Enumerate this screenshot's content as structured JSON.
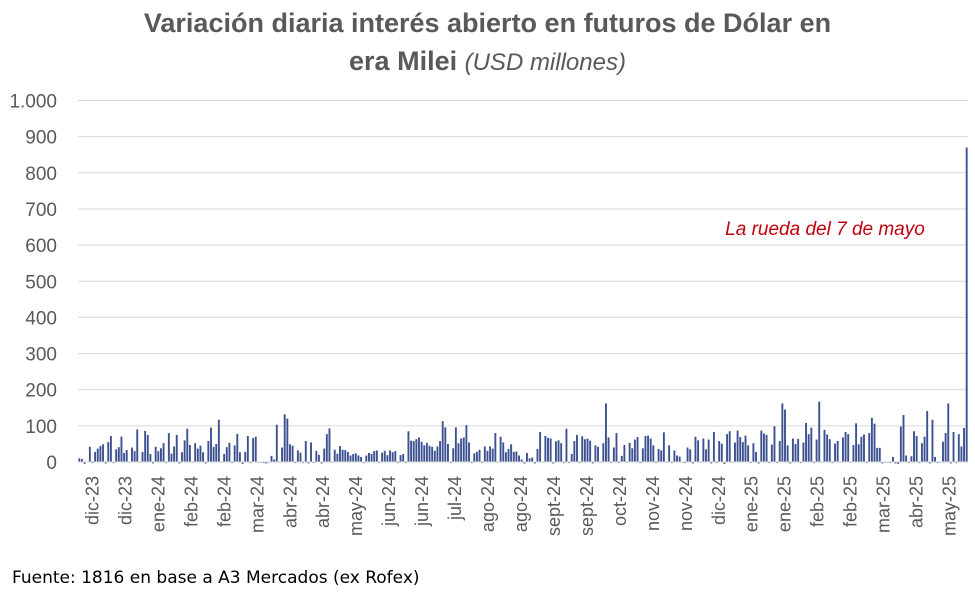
{
  "chart_data": {
    "type": "bar",
    "title_line1": "Variación diaria interés abierto en futuros de Dólar en",
    "title_line2": "era Milei",
    "title_units": "(USD millones)",
    "ylim": [
      -10,
      1000
    ],
    "y_ticks": [
      0,
      100,
      200,
      300,
      400,
      500,
      600,
      700,
      800,
      900,
      1000
    ],
    "y_tick_labels": [
      "0",
      "100",
      "200",
      "300",
      "400",
      "500",
      "600",
      "700",
      "800",
      "900",
      "1.000"
    ],
    "x_tick_labels": [
      "dic-23",
      "dic-23",
      "ene-24",
      "feb-24",
      "feb-24",
      "mar-24",
      "abr-24",
      "abr-24",
      "may-24",
      "jun-24",
      "jun-24",
      "jul-24",
      "ago-24",
      "ago-24",
      "sept-24",
      "sept-24",
      "oct-24",
      "nov-24",
      "nov-24",
      "dic-24",
      "ene-25",
      "ene-25",
      "feb-25",
      "feb-25",
      "mar-25",
      "abr-25",
      "may-25"
    ],
    "grid": true,
    "bar_color": "#3d5191",
    "annotation": {
      "text": "La rueda del 7 de mayo",
      "color": "#c0000b"
    },
    "values": [
      10,
      8,
      -5,
      0,
      42,
      -3,
      28,
      37,
      44,
      49,
      -4,
      55,
      72,
      -3,
      35,
      41,
      70,
      25,
      33,
      -2,
      40,
      30,
      90,
      -2,
      28,
      86,
      75,
      22,
      -4,
      42,
      30,
      38,
      52,
      -3,
      80,
      23,
      43,
      75,
      -4,
      27,
      60,
      92,
      47,
      -2,
      52,
      37,
      45,
      27,
      -4,
      58,
      95,
      42,
      50,
      117,
      -2,
      22,
      41,
      53,
      -3,
      46,
      78,
      27,
      -5,
      28,
      72,
      -3,
      66,
      70,
      -2,
      -2,
      -3,
      -4,
      -2,
      17,
      7,
      103,
      -2,
      40,
      132,
      120,
      49,
      45,
      -3,
      32,
      26,
      -3,
      58,
      -4,
      54,
      -3,
      31,
      20,
      -4,
      37,
      77,
      93,
      -2,
      34,
      23,
      44,
      34,
      33,
      28,
      18,
      22,
      24,
      18,
      14,
      -3,
      18,
      25,
      22,
      30,
      32,
      -3,
      26,
      31,
      19,
      32,
      27,
      30,
      -3,
      19,
      22,
      -3,
      85,
      59,
      58,
      63,
      68,
      56,
      46,
      53,
      45,
      42,
      31,
      43,
      58,
      113,
      96,
      50,
      -3,
      38,
      96,
      52,
      65,
      68,
      102,
      54,
      -3,
      24,
      28,
      34,
      -3,
      43,
      31,
      43,
      37,
      80,
      -2,
      70,
      54,
      27,
      36,
      49,
      28,
      29,
      18,
      7,
      -4,
      25,
      10,
      12,
      -4,
      36,
      83,
      -2,
      72,
      67,
      65,
      -4,
      57,
      60,
      52,
      -3,
      92,
      -3,
      22,
      58,
      75,
      -3,
      71,
      63,
      65,
      59,
      -4,
      46,
      42,
      -2,
      52,
      162,
      68,
      -3,
      40,
      80,
      -3,
      17,
      47,
      -2,
      53,
      38,
      62,
      69,
      -3,
      38,
      72,
      73,
      65,
      46,
      -3,
      36,
      32,
      82,
      -2,
      46,
      -3,
      32,
      18,
      15,
      -2,
      -3,
      40,
      35,
      -4,
      70,
      60,
      -2,
      65,
      35,
      62,
      -4,
      83,
      -3,
      58,
      51,
      -5,
      77,
      85,
      -2,
      54,
      87,
      69,
      55,
      73,
      46,
      -3,
      52,
      28,
      -4,
      87,
      79,
      75,
      -3,
      48,
      99,
      -3,
      58,
      162,
      145,
      46,
      -4,
      65,
      50,
      64,
      -3,
      54,
      108,
      77,
      95,
      -3,
      62,
      167,
      -2,
      89,
      76,
      63,
      -3,
      51,
      58,
      -2,
      68,
      83,
      77,
      -2,
      47,
      107,
      49,
      70,
      76,
      -3,
      80,
      122,
      106,
      39,
      39,
      -4,
      -2,
      -2,
      -3,
      14,
      -4,
      -5,
      98,
      130,
      18,
      -3,
      16,
      85,
      72,
      -3,
      52,
      70,
      141,
      -4,
      117,
      14,
      -3,
      -2,
      56,
      80,
      162,
      -4,
      83,
      -3,
      77,
      43,
      94,
      870
    ]
  },
  "source_text": "Fuente: 1816 en base a A3 Mercados (ex Rofex)"
}
